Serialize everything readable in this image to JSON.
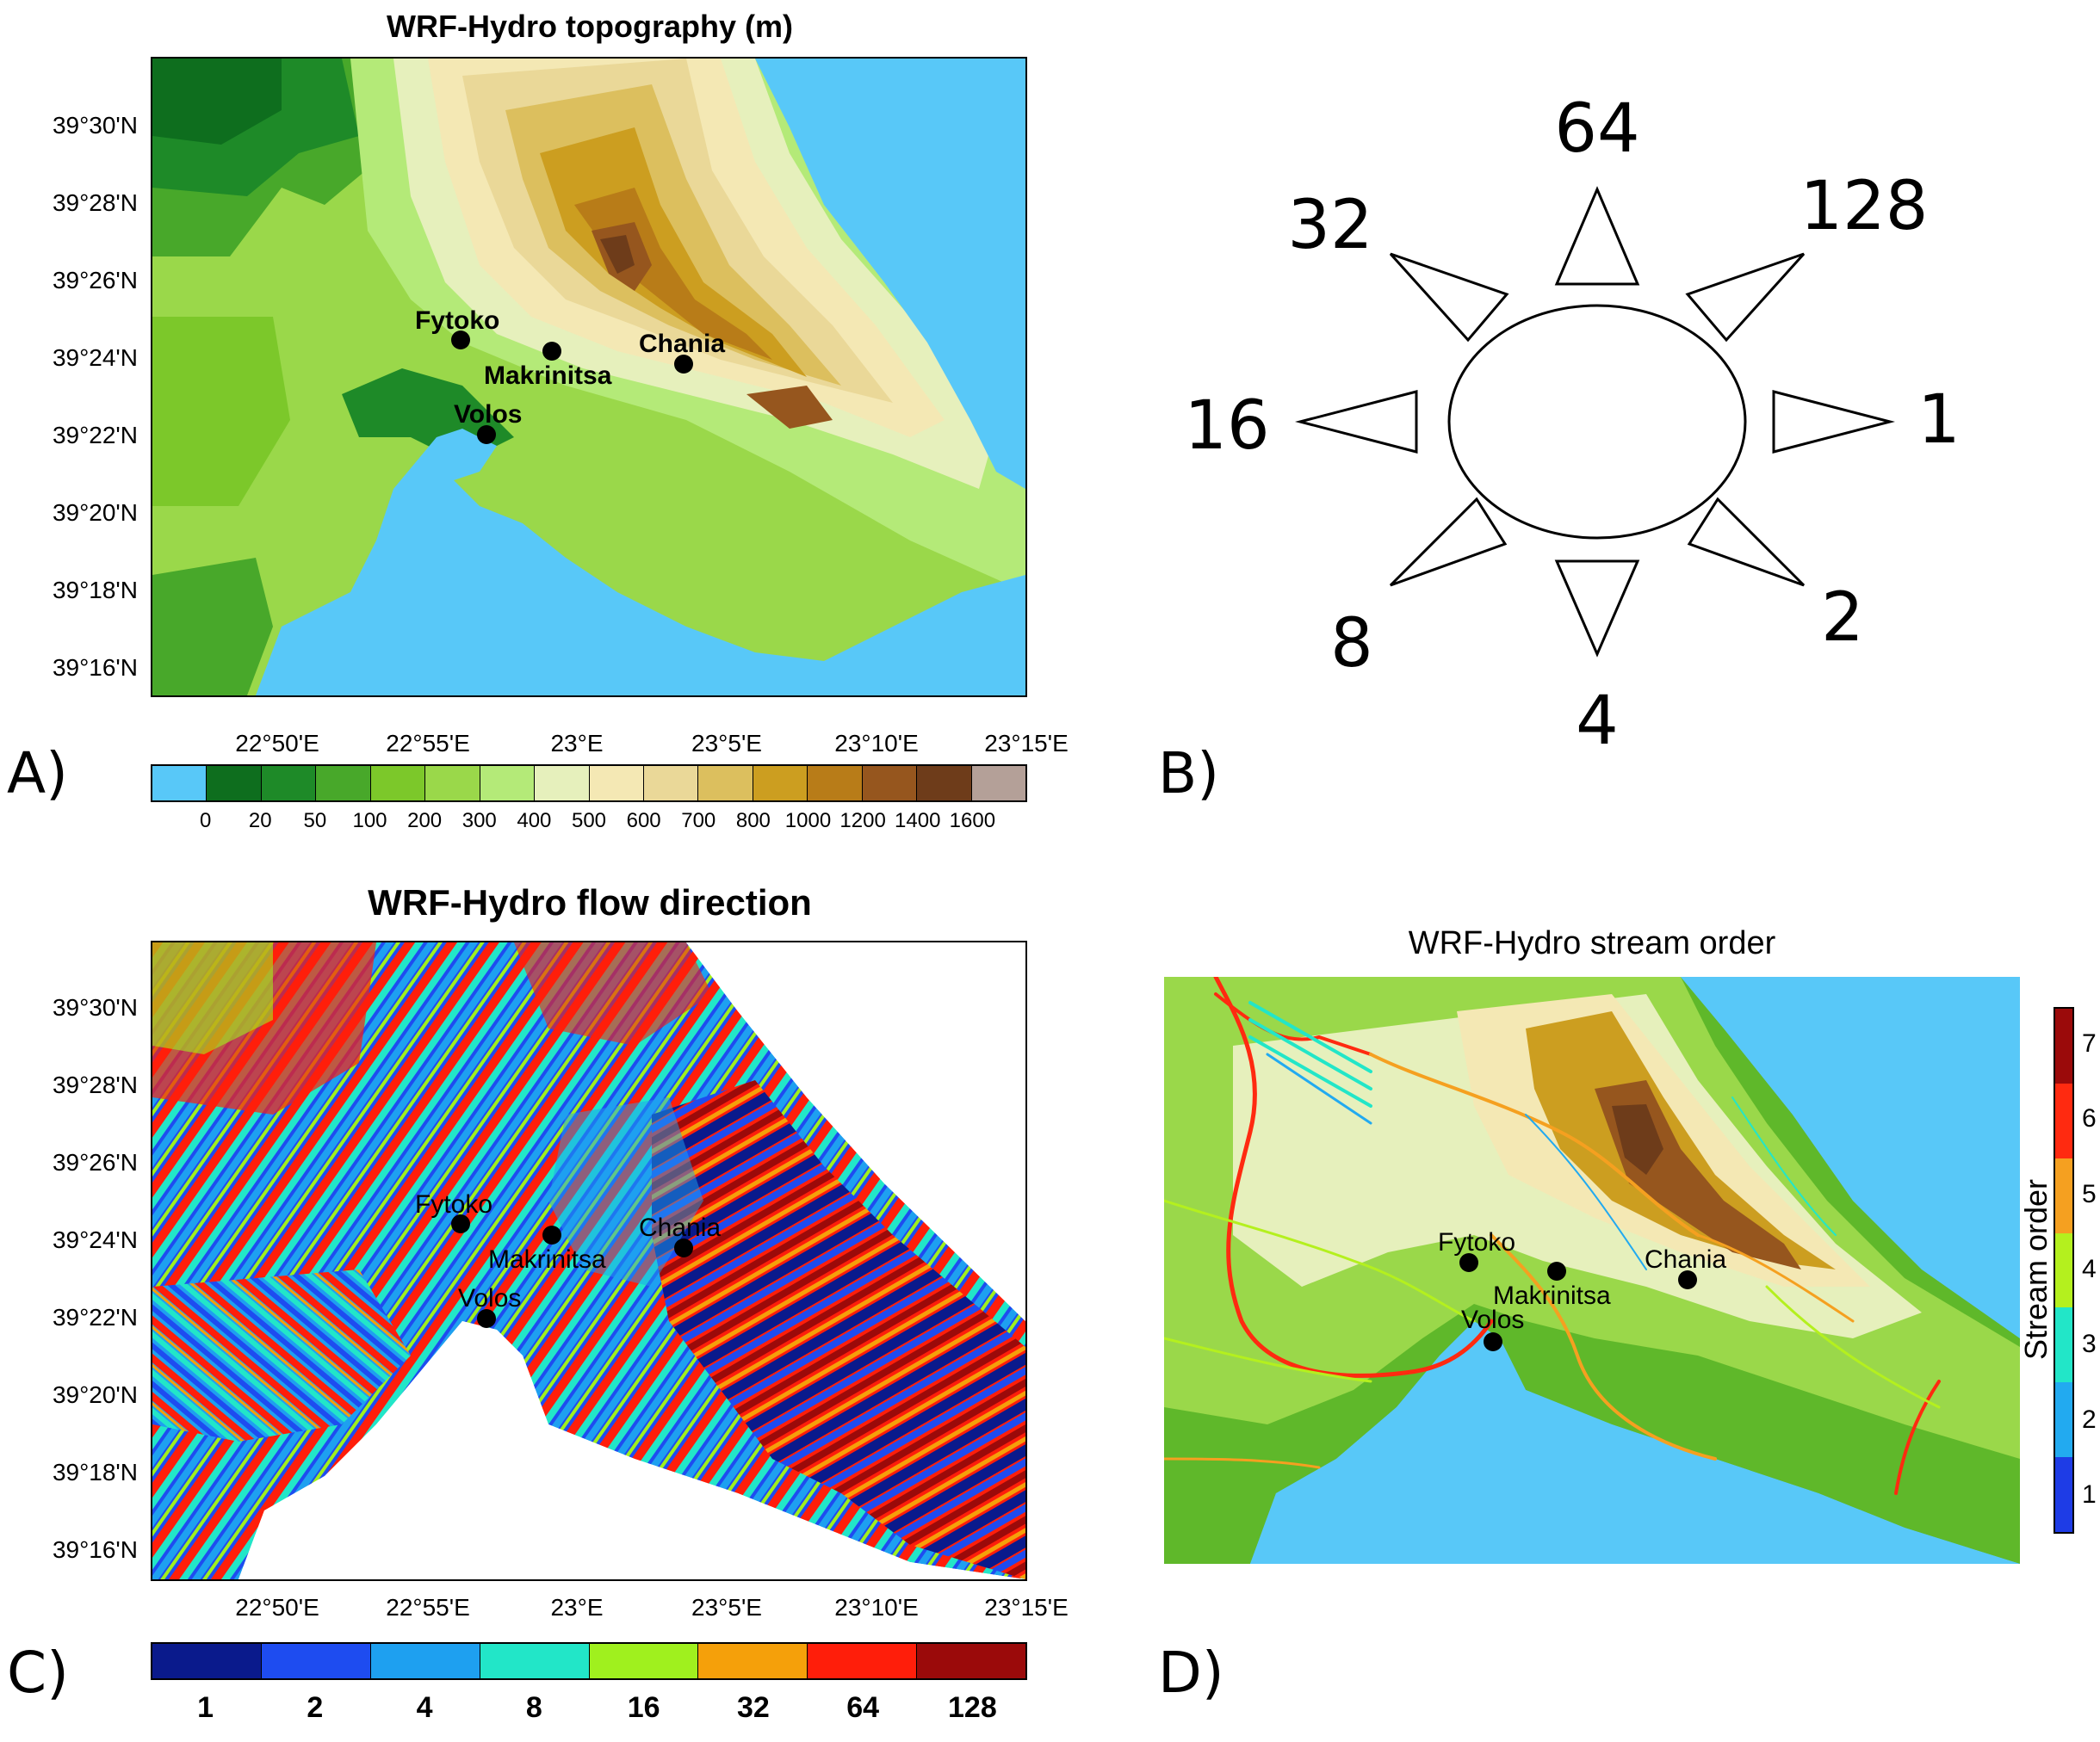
{
  "panels": {
    "a": {
      "letter": "A)",
      "title": "WRF-Hydro topography (m)"
    },
    "b": {
      "letter": "B)"
    },
    "c": {
      "letter": "C)",
      "title": "WRF-Hydro flow direction"
    },
    "d": {
      "letter": "D)",
      "title": "WRF-Hydro stream order"
    }
  },
  "lat_labels": [
    "39°30'N",
    "39°28'N",
    "39°26'N",
    "39°24'N",
    "39°22'N",
    "39°20'N",
    "39°18'N",
    "39°16'N"
  ],
  "lon_labels": [
    "22°50'E",
    "22°55'E",
    "23°E",
    "23°5'E",
    "23°10'E",
    "23°15'E"
  ],
  "towns": {
    "fytoko": "Fytoko",
    "makrinitsa": "Makrinitsa",
    "chania": "Chania",
    "volos": "Volos"
  },
  "topo_colorbar": {
    "colors": [
      "#58c8f8",
      "#0e6e1e",
      "#1e8a28",
      "#48a82a",
      "#7cc82a",
      "#9ad84a",
      "#b4ea78",
      "#e6f0bc",
      "#f4e8b4",
      "#ead898",
      "#dcbf5e",
      "#cc9e20",
      "#b87c18",
      "#96561e",
      "#6e3c1a",
      "#b4a098"
    ],
    "labels": [
      "0",
      "20",
      "50",
      "100",
      "200",
      "300",
      "400",
      "500",
      "600",
      "700",
      "800",
      "1000",
      "1200",
      "1400",
      "1600"
    ]
  },
  "flow_direction": {
    "directions": [
      "64",
      "128",
      "1",
      "2",
      "4",
      "8",
      "16",
      "32"
    ]
  },
  "flow_colorbar": {
    "colors": [
      "#0a1a8c",
      "#1e4cf0",
      "#1ea0f0",
      "#22e6c8",
      "#a0f01e",
      "#f5a00a",
      "#ff1e0a",
      "#9b0a0a"
    ],
    "labels": [
      "1",
      "2",
      "4",
      "8",
      "16",
      "32",
      "64",
      "128"
    ]
  },
  "stream_colorbar": {
    "title": "Stream order",
    "colors": [
      "#9b0a0a",
      "#ff2a10",
      "#f5a020",
      "#b4f01e",
      "#22e6c8",
      "#22aaf0",
      "#1e3ce6"
    ],
    "labels": [
      "7",
      "6",
      "5",
      "4",
      "3",
      "2",
      "1"
    ]
  }
}
